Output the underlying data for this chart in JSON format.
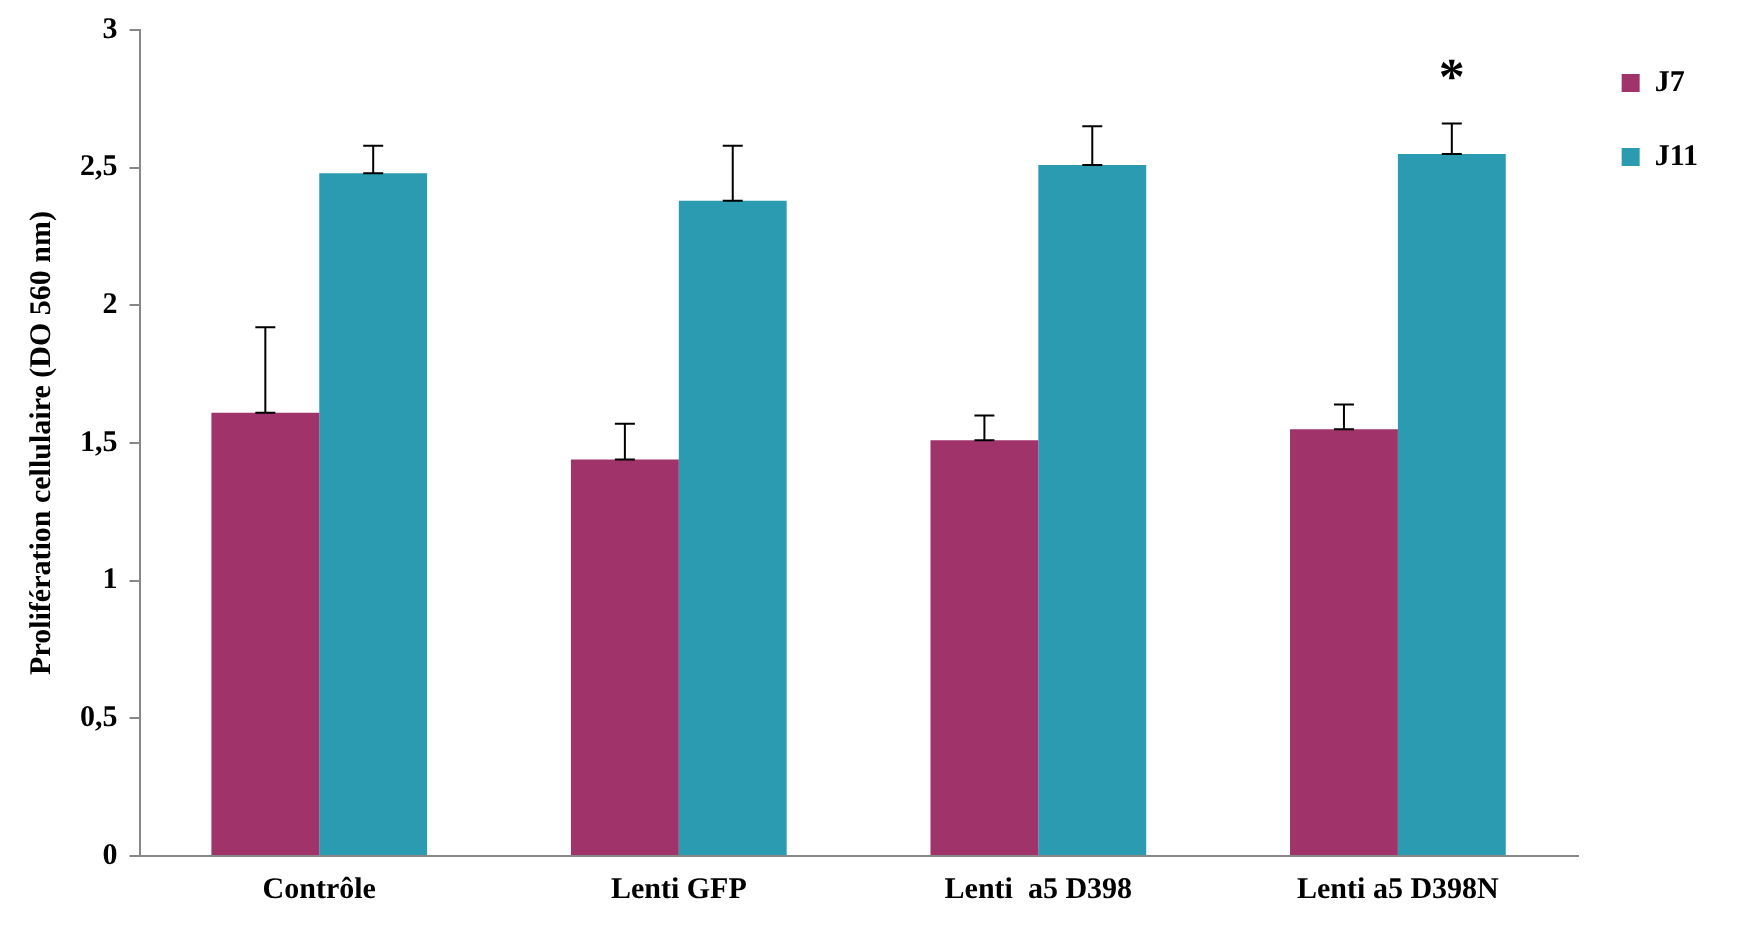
{
  "chart_data": {
    "type": "bar",
    "ylabel": "Prolifération cellulaire (DO 560 nm)",
    "categories": [
      "Contrôle",
      "Lenti GFP",
      "Lenti  a5 D398",
      "Lenti a5 D398N"
    ],
    "series": [
      {
        "name": "J7",
        "color": "#a0336a",
        "values": [
          1.61,
          1.44,
          1.51,
          1.55
        ],
        "errors": [
          [
            1.61,
            1.92
          ],
          [
            1.44,
            1.57
          ],
          [
            1.51,
            1.6
          ],
          [
            1.55,
            1.64
          ]
        ]
      },
      {
        "name": "J11",
        "color": "#2a9bb0",
        "values": [
          2.48,
          2.38,
          2.51,
          2.55
        ],
        "errors": [
          [
            2.48,
            2.58
          ],
          [
            2.38,
            2.58
          ],
          [
            2.51,
            2.65
          ],
          [
            2.55,
            2.66
          ]
        ]
      }
    ],
    "ylim": [
      0,
      3
    ],
    "yticks": [
      0,
      {
        "value": 0.5,
        "label": "0,5"
      },
      1,
      {
        "value": 1.5,
        "label": "1,5"
      },
      2,
      {
        "value": 2.5,
        "label": "2,5"
      },
      3
    ],
    "annotations": [
      "*"
    ],
    "grid": false,
    "legend": "top right"
  }
}
